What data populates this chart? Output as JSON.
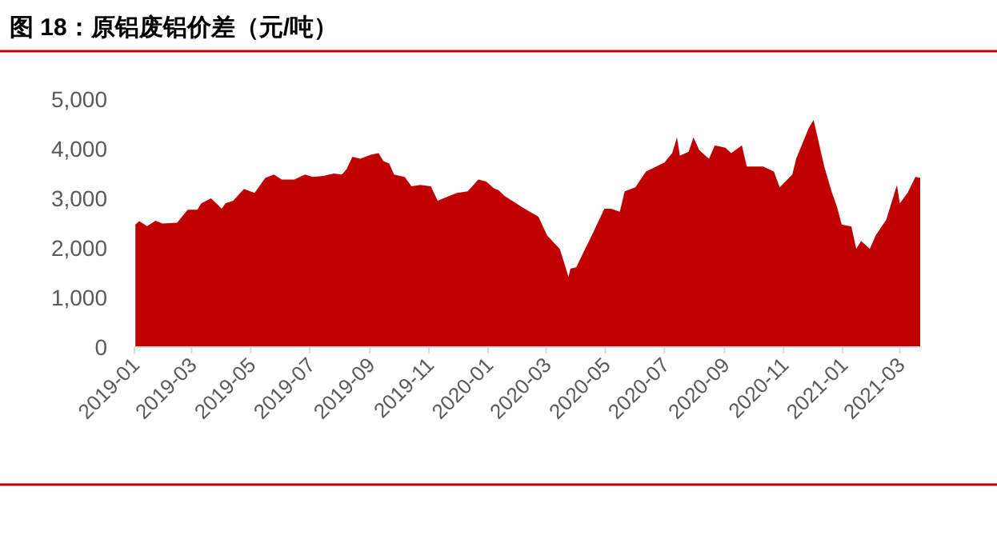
{
  "chart_data": {
    "type": "area",
    "title": "图 18：原铝废铝价差（元/吨）",
    "x": [
      "2019-01-02",
      "2019-01-06",
      "2019-01-14",
      "2019-01-23",
      "2019-01-30",
      "2019-02-14",
      "2019-02-25",
      "2019-03-07",
      "2019-03-11",
      "2019-03-21",
      "2019-03-28",
      "2019-04-01",
      "2019-04-05",
      "2019-04-13",
      "2019-04-24",
      "2019-05-05",
      "2019-05-16",
      "2019-05-25",
      "2019-06-02",
      "2019-06-15",
      "2019-06-26",
      "2019-07-04",
      "2019-07-15",
      "2019-07-26",
      "2019-08-03",
      "2019-08-08",
      "2019-08-14",
      "2019-08-22",
      "2019-09-02",
      "2019-09-10",
      "2019-09-15",
      "2019-09-21",
      "2019-09-26",
      "2019-10-07",
      "2019-10-14",
      "2019-10-23",
      "2019-11-03",
      "2019-11-10",
      "2019-11-22",
      "2019-11-30",
      "2019-12-11",
      "2019-12-22",
      "2019-12-30",
      "2020-01-07",
      "2020-01-12",
      "2020-01-18",
      "2020-02-06",
      "2020-02-22",
      "2020-03-02",
      "2020-03-15",
      "2020-03-21",
      "2020-03-24",
      "2020-03-26",
      "2020-04-01",
      "2020-04-09",
      "2020-04-17",
      "2020-04-30",
      "2020-05-07",
      "2020-05-16",
      "2020-05-21",
      "2020-06-01",
      "2020-06-12",
      "2020-07-01",
      "2020-07-09",
      "2020-07-14",
      "2020-07-17",
      "2020-07-26",
      "2020-07-31",
      "2020-08-06",
      "2020-08-16",
      "2020-08-22",
      "2020-09-02",
      "2020-09-08",
      "2020-09-19",
      "2020-09-24",
      "2020-10-11",
      "2020-10-22",
      "2020-10-28",
      "2020-11-10",
      "2020-11-14",
      "2020-11-27",
      "2020-12-02",
      "2020-12-08",
      "2020-12-13",
      "2020-12-21",
      "2020-12-26",
      "2020-12-31",
      "2021-01-10",
      "2021-01-15",
      "2021-01-20",
      "2021-01-29",
      "2021-02-04",
      "2021-02-15",
      "2021-02-26",
      "2021-03-01",
      "2021-03-09",
      "2021-03-17",
      "2021-03-22"
    ],
    "series": [
      {
        "color": "#c00000",
        "values": [
          2470,
          2540,
          2440,
          2550,
          2490,
          2510,
          2770,
          2770,
          2900,
          3000,
          2870,
          2790,
          2900,
          2950,
          3190,
          3110,
          3410,
          3480,
          3380,
          3380,
          3480,
          3430,
          3450,
          3500,
          3480,
          3590,
          3840,
          3800,
          3880,
          3910,
          3750,
          3700,
          3480,
          3430,
          3240,
          3270,
          3240,
          2950,
          3050,
          3110,
          3140,
          3380,
          3340,
          3200,
          3160,
          3050,
          2810,
          2630,
          2250,
          1980,
          1610,
          1410,
          1580,
          1610,
          1930,
          2250,
          2790,
          2790,
          2730,
          3140,
          3220,
          3540,
          3720,
          3910,
          4230,
          3860,
          3940,
          4230,
          3970,
          3800,
          4070,
          4020,
          3910,
          4070,
          3640,
          3640,
          3540,
          3220,
          3480,
          3800,
          4420,
          4580,
          4070,
          3640,
          3110,
          2840,
          2470,
          2430,
          1980,
          2140,
          1980,
          2250,
          2570,
          3270,
          2900,
          3110,
          3430,
          3410
        ]
      }
    ],
    "xlim": [
      "2019-01-01",
      "2021-03-22"
    ],
    "xticks": [
      "2019-01",
      "2019-03",
      "2019-05",
      "2019-07",
      "2019-09",
      "2019-11",
      "2020-01",
      "2020-03",
      "2020-05",
      "2020-07",
      "2020-09",
      "2020-11",
      "2021-01",
      "2021-03"
    ],
    "ylim": [
      0,
      5000
    ],
    "yticks": [
      {
        "value": 0,
        "label": "0"
      },
      {
        "value": 1000,
        "label": "1,000"
      },
      {
        "value": 2000,
        "label": "2,000"
      },
      {
        "value": 3000,
        "label": "3,000"
      },
      {
        "value": 4000,
        "label": "4,000"
      },
      {
        "value": 5000,
        "label": "5,000"
      }
    ],
    "grid": false
  }
}
